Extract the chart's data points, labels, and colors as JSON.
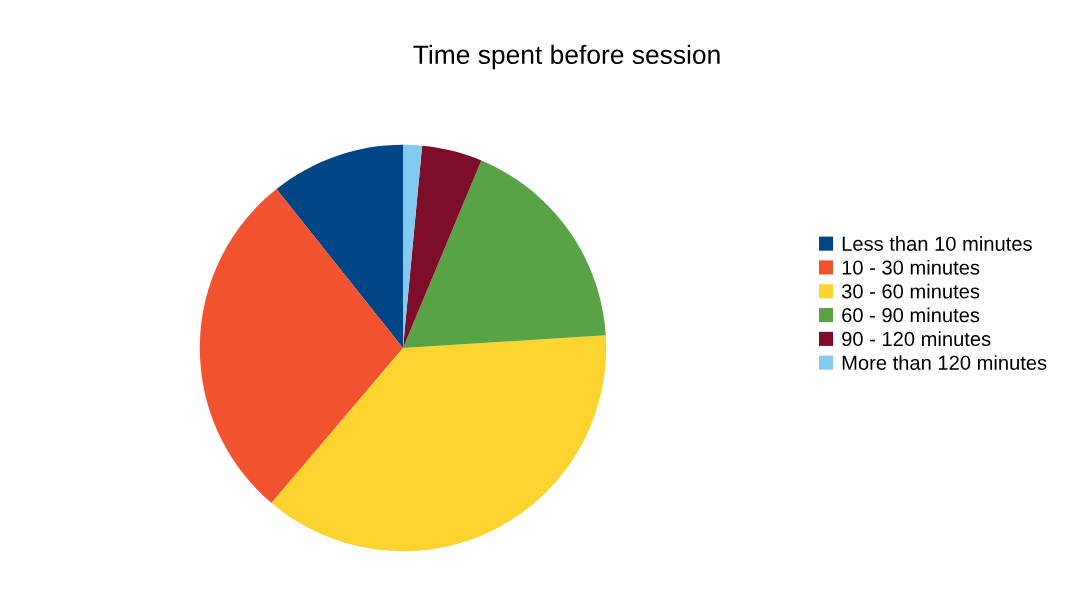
{
  "chart_data": {
    "type": "pie",
    "title": "Time spent before session",
    "categories": [
      "Less than 10 minutes",
      "10 - 30 minutes",
      "30 - 60 minutes",
      "60 - 90 minutes",
      "90 - 120 minutes",
      "More than 120 minutes"
    ],
    "values": [
      10.7,
      28.1,
      37.2,
      17.7,
      4.8,
      1.5
    ],
    "colors": [
      "#004586",
      "#f0532d",
      "#fdd32f",
      "#57a345",
      "#7e0d2a",
      "#83caf0"
    ],
    "legend": "right"
  }
}
